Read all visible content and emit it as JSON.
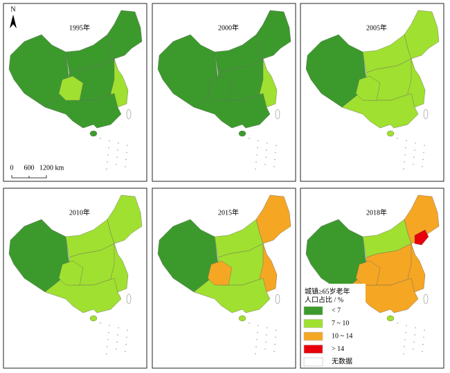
{
  "panels": [
    {
      "title": "1995年"
    },
    {
      "title": "2000年"
    },
    {
      "title": "2005年"
    },
    {
      "title": "2010年"
    },
    {
      "title": "2015年"
    },
    {
      "title": "2018年"
    }
  ],
  "north_arrow": "N",
  "scale_bar": [
    "0",
    "600",
    "1200 km"
  ],
  "legend": {
    "title": [
      "城镇≥65岁老年",
      "人口占比 / %"
    ],
    "items": [
      {
        "label": "< 7",
        "color": "#3c9a2c"
      },
      {
        "label": "7 ~ 10",
        "color": "#a0e030"
      },
      {
        "label": "10 ~ 14",
        "color": "#f5a623"
      },
      {
        "label": "> 14",
        "color": "#e8000b"
      },
      {
        "label": "无数据",
        "color": "#ffffff"
      }
    ]
  }
}
